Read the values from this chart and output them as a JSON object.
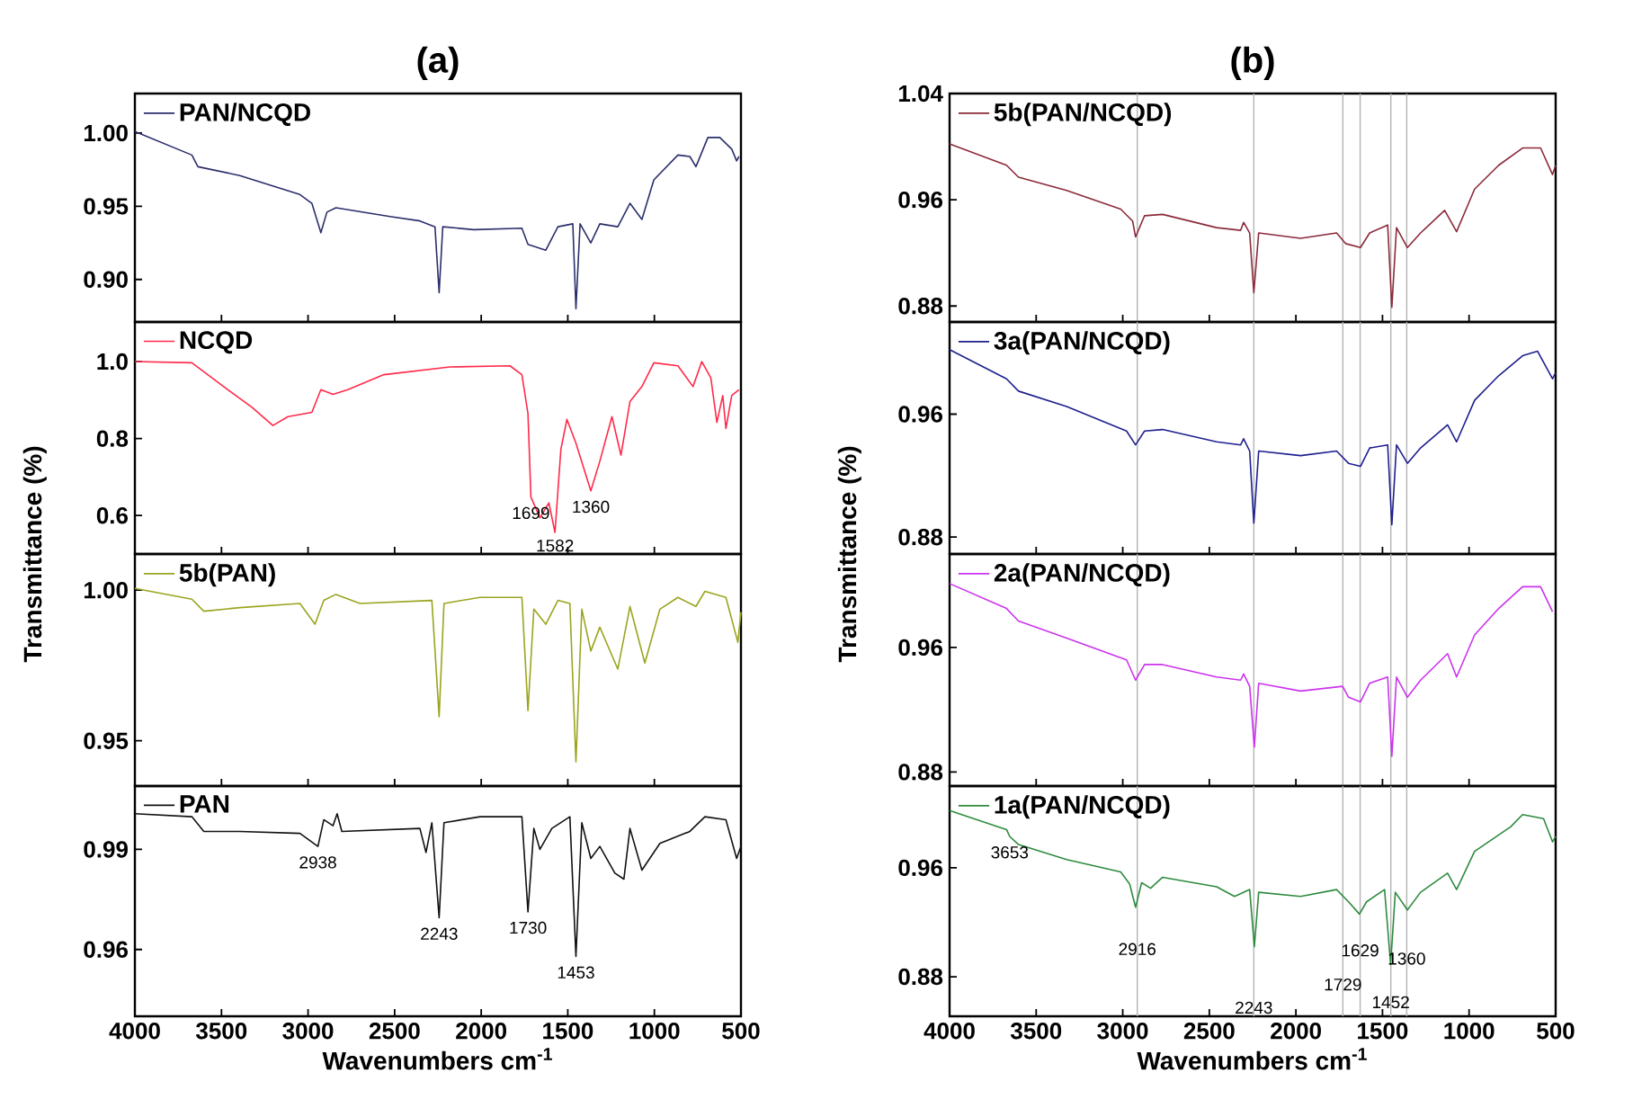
{
  "chart_data": [
    {
      "type": "line",
      "title": "(a)",
      "legend": "top left",
      "xlim": [
        4000,
        500
      ],
      "xticks": [
        4000,
        3500,
        3000,
        2500,
        2000,
        1500,
        1000,
        500
      ],
      "ylim": [
        0.871,
        1.027
      ],
      "yticks": [
        {
          "value": 1.0,
          "label": "1.00"
        },
        {
          "value": 0.95,
          "label": "0.95"
        },
        {
          "value": 0.9,
          "label": "0.90"
        }
      ],
      "tick_labels": "y",
      "series": [
        {
          "name": "PAN/NCQD",
          "color": "#2b2f6b",
          "x": [
            4000,
            3671,
            3636,
            3394,
            3047,
            2978,
            2926,
            2891,
            2839,
            2527,
            2354,
            2267,
            2243,
            2222,
            2042,
            1765,
            1730,
            1627,
            1557,
            1471,
            1453,
            1429,
            1367,
            1315,
            1211,
            1141,
            1072,
            1003,
            864,
            795,
            760,
            691,
            622,
            553,
            525,
            511
          ],
          "values": [
            1.001,
            0.985,
            0.977,
            0.971,
            0.958,
            0.952,
            0.932,
            0.946,
            0.949,
            0.943,
            0.94,
            0.936,
            0.891,
            0.936,
            0.934,
            0.935,
            0.924,
            0.92,
            0.936,
            0.938,
            0.88,
            0.938,
            0.925,
            0.938,
            0.936,
            0.952,
            0.941,
            0.968,
            0.985,
            0.984,
            0.977,
            0.997,
            0.997,
            0.989,
            0.981,
            0.984
          ]
        }
      ]
    },
    {
      "type": "line",
      "ylabel": "Transmittance (%)",
      "legend": "top left",
      "xlim": [
        4000,
        500
      ],
      "xticks": [
        4000,
        3500,
        3000,
        2500,
        2000,
        1500,
        1000,
        500
      ],
      "ylim": [
        0.5,
        1.103
      ],
      "yticks": [
        {
          "value": 1.0,
          "label": "1.0"
        },
        {
          "value": 0.8,
          "label": "0.8"
        },
        {
          "value": 0.6,
          "label": "0.6"
        }
      ],
      "tick_labels": "y",
      "series": [
        {
          "name": "NCQD",
          "color": "#ff2a4a",
          "x": [
            4000,
            3671,
            3463,
            3324,
            3203,
            3116,
            2978,
            2926,
            2856,
            2770,
            2562,
            2181,
            1834,
            1765,
            1730,
            1713,
            1661,
            1609,
            1574,
            1540,
            1505,
            1453,
            1367,
            1315,
            1245,
            1193,
            1141,
            1072,
            1003,
            864,
            777,
            726,
            674,
            639,
            605,
            587,
            553,
            511
          ],
          "values": [
            1.0,
            0.997,
            0.927,
            0.881,
            0.834,
            0.857,
            0.868,
            0.927,
            0.915,
            0.927,
            0.966,
            0.986,
            0.989,
            0.966,
            0.865,
            0.648,
            0.594,
            0.633,
            0.556,
            0.772,
            0.85,
            0.788,
            0.664,
            0.741,
            0.857,
            0.757,
            0.896,
            0.935,
            0.997,
            0.989,
            0.935,
            1.0,
            0.958,
            0.842,
            0.912,
            0.826,
            0.912,
            0.927
          ]
        }
      ],
      "annotations": [
        {
          "text": "1699",
          "x": 1713,
          "y": 0.648
        },
        {
          "text": "1360",
          "x": 1367,
          "y": 0.664
        },
        {
          "text": "1582",
          "x": 1574,
          "y": 0.556
        }
      ]
    },
    {
      "type": "line",
      "legend": "top left",
      "xlim": [
        4000,
        500
      ],
      "xticks": [
        4000,
        3500,
        3000,
        2500,
        2000,
        1500,
        1000,
        500
      ],
      "ylim": [
        0.935,
        1.012
      ],
      "yticks": [
        {
          "value": 1.0,
          "label": "1.00"
        },
        {
          "value": 0.95,
          "label": "0.95"
        }
      ],
      "tick_labels": "y",
      "series": [
        {
          "name": "5b(PAN)",
          "color": "#9aa51e",
          "x": [
            4000,
            3671,
            3602,
            3394,
            3047,
            2960,
            2909,
            2839,
            2700,
            2285,
            2243,
            2215,
            2007,
            1765,
            1730,
            1696,
            1627,
            1557,
            1488,
            1453,
            1419,
            1367,
            1315,
            1211,
            1141,
            1055,
            968,
            864,
            760,
            708,
            587,
            518,
            500
          ],
          "values": [
            1.0006,
            0.997,
            0.993,
            0.9942,
            0.9956,
            0.9887,
            0.9966,
            0.9986,
            0.9956,
            0.9966,
            0.958,
            0.9956,
            0.9976,
            0.9976,
            0.96,
            0.9937,
            0.9887,
            0.9966,
            0.9956,
            0.943,
            0.9937,
            0.9798,
            0.9877,
            0.9738,
            0.9946,
            0.9758,
            0.9937,
            0.9976,
            0.9946,
            0.9996,
            0.9976,
            0.9827,
            0.9927
          ]
        }
      ]
    },
    {
      "type": "line",
      "xlabel": "Wavenumbers cm$^{-1}$",
      "legend": "top left",
      "xlim": [
        4000,
        500
      ],
      "xticks": [
        4000,
        3500,
        3000,
        2500,
        2000,
        1500,
        1000,
        500
      ],
      "ylim": [
        0.94,
        1.009
      ],
      "yticks": [
        {
          "value": 0.99,
          "label": "0.99"
        },
        {
          "value": 0.96,
          "label": "0.96"
        }
      ],
      "series": [
        {
          "name": "PAN",
          "color": "#111111",
          "x": [
            4000,
            3671,
            3602,
            3394,
            3047,
            2943,
            2909,
            2856,
            2832,
            2805,
            2354,
            2319,
            2285,
            2243,
            2215,
            2007,
            1765,
            1730,
            1696,
            1661,
            1592,
            1488,
            1453,
            1419,
            1367,
            1315,
            1228,
            1176,
            1141,
            1072,
            968,
            795,
            708,
            587,
            525,
            500
          ],
          "values": [
            1.0007,
            0.9998,
            0.9954,
            0.9954,
            0.9948,
            0.9909,
            0.9989,
            0.9971,
            1.0007,
            0.9954,
            0.9963,
            0.9891,
            0.998,
            0.9695,
            0.998,
            0.9998,
            0.9998,
            0.9713,
            0.9963,
            0.99,
            0.9963,
            0.9998,
            0.9579,
            0.998,
            0.9873,
            0.9909,
            0.9829,
            0.9811,
            0.9963,
            0.9838,
            0.9918,
            0.9954,
            0.9998,
            0.9989,
            0.9873,
            0.9909
          ]
        }
      ],
      "annotations": [
        {
          "text": "2938",
          "x": 2943,
          "y": 0.9909
        },
        {
          "text": "2243",
          "x": 2243,
          "y": 0.9695
        },
        {
          "text": "1730",
          "x": 1730,
          "y": 0.9713
        },
        {
          "text": "1453",
          "x": 1453,
          "y": 0.9579
        }
      ]
    },
    {
      "type": "line",
      "title": "(b)",
      "legend": "top left",
      "xlim": [
        4000,
        500
      ],
      "xticks": [
        4000,
        3500,
        3000,
        2500,
        2000,
        1500,
        1000,
        500
      ],
      "ylim": [
        0.868,
        1.04
      ],
      "yticks": [
        {
          "value": 1.04,
          "label": "1.04"
        },
        {
          "value": 0.96,
          "label": "0.96"
        },
        {
          "value": 0.88,
          "label": "0.88"
        }
      ],
      "tick_labels": "y",
      "ref_lines": [
        {
          "axis": "x",
          "value": 2916,
          "color": "#b4b4b4"
        },
        {
          "axis": "x",
          "value": 2243,
          "color": "#b4b4b4"
        },
        {
          "axis": "x",
          "value": 1729,
          "color": "#b4b4b4"
        },
        {
          "axis": "x",
          "value": 1629,
          "color": "#b4b4b4"
        },
        {
          "axis": "x",
          "value": 1452,
          "color": "#b4b4b4"
        },
        {
          "axis": "x",
          "value": 1360,
          "color": "#b4b4b4"
        }
      ],
      "series": [
        {
          "name": "5b(PAN/NCQD)",
          "color": "#8b2a3a",
          "x": [
            4000,
            3671,
            3602,
            3324,
            3012,
            2943,
            2926,
            2874,
            2770,
            2458,
            2319,
            2302,
            2267,
            2243,
            2215,
            1973,
            1765,
            1713,
            1627,
            1574,
            1470,
            1446,
            1419,
            1356,
            1280,
            1141,
            1072,
            968,
            829,
            691,
            587,
            518,
            500
          ],
          "values": [
            1.002,
            0.986,
            0.977,
            0.967,
            0.953,
            0.944,
            0.932,
            0.948,
            0.949,
            0.939,
            0.937,
            0.943,
            0.935,
            0.89,
            0.935,
            0.931,
            0.935,
            0.927,
            0.924,
            0.935,
            0.941,
            0.879,
            0.939,
            0.924,
            0.935,
            0.952,
            0.936,
            0.968,
            0.986,
            0.999,
            0.999,
            0.979,
            0.986
          ]
        }
      ]
    },
    {
      "type": "line",
      "ylabel": "Transmittance (%)",
      "legend": "top left",
      "xlim": [
        4000,
        500
      ],
      "xticks": [
        4000,
        3500,
        3000,
        2500,
        2000,
        1500,
        1000,
        500
      ],
      "ylim": [
        0.869,
        1.02
      ],
      "yticks": [
        {
          "value": 0.96,
          "label": "0.96"
        },
        {
          "value": 0.88,
          "label": "0.88"
        }
      ],
      "tick_labels": "y",
      "ref_lines": [
        {
          "axis": "x",
          "value": 2916,
          "color": "#b4b4b4"
        },
        {
          "axis": "x",
          "value": 2243,
          "color": "#b4b4b4"
        },
        {
          "axis": "x",
          "value": 1729,
          "color": "#b4b4b4"
        },
        {
          "axis": "x",
          "value": 1629,
          "color": "#b4b4b4"
        },
        {
          "axis": "x",
          "value": 1452,
          "color": "#b4b4b4"
        },
        {
          "axis": "x",
          "value": 1360,
          "color": "#b4b4b4"
        }
      ],
      "series": [
        {
          "name": "3a(PAN/NCQD)",
          "color": "#1f1f8f",
          "x": [
            4000,
            3671,
            3602,
            3324,
            2978,
            2926,
            2874,
            2770,
            2458,
            2319,
            2302,
            2267,
            2243,
            2215,
            1973,
            1765,
            1696,
            1627,
            1574,
            1470,
            1446,
            1419,
            1356,
            1280,
            1124,
            1072,
            968,
            829,
            691,
            605,
            518,
            500
          ],
          "values": [
            1.002,
            0.983,
            0.975,
            0.965,
            0.949,
            0.94,
            0.949,
            0.95,
            0.942,
            0.94,
            0.944,
            0.936,
            0.889,
            0.936,
            0.933,
            0.936,
            0.928,
            0.926,
            0.938,
            0.94,
            0.888,
            0.94,
            0.928,
            0.938,
            0.953,
            0.942,
            0.969,
            0.985,
            0.998,
            1.001,
            0.983,
            0.987
          ]
        }
      ]
    },
    {
      "type": "line",
      "legend": "top left",
      "xlim": [
        4000,
        500
      ],
      "xticks": [
        4000,
        3500,
        3000,
        2500,
        2000,
        1500,
        1000,
        500
      ],
      "ylim": [
        0.871,
        1.02
      ],
      "yticks": [
        {
          "value": 0.96,
          "label": "0.96"
        },
        {
          "value": 0.88,
          "label": "0.88"
        }
      ],
      "tick_labels": "y",
      "ref_lines": [
        {
          "axis": "x",
          "value": 2916,
          "color": "#b4b4b4"
        },
        {
          "axis": "x",
          "value": 2243,
          "color": "#b4b4b4"
        },
        {
          "axis": "x",
          "value": 1729,
          "color": "#b4b4b4"
        },
        {
          "axis": "x",
          "value": 1629,
          "color": "#b4b4b4"
        },
        {
          "axis": "x",
          "value": 1452,
          "color": "#b4b4b4"
        },
        {
          "axis": "x",
          "value": 1360,
          "color": "#b4b4b4"
        }
      ],
      "series": [
        {
          "name": "2a(PAN/NCQD)",
          "color": "#cc33ee",
          "x": [
            4000,
            3671,
            3602,
            3324,
            2978,
            2926,
            2874,
            2770,
            2458,
            2319,
            2302,
            2267,
            2240,
            2215,
            1973,
            1730,
            1696,
            1627,
            1574,
            1470,
            1446,
            1419,
            1356,
            1280,
            1124,
            1072,
            968,
            829,
            691,
            587,
            518
          ],
          "values": [
            1.001,
            0.985,
            0.977,
            0.966,
            0.952,
            0.939,
            0.949,
            0.949,
            0.941,
            0.939,
            0.943,
            0.935,
            0.896,
            0.937,
            0.932,
            0.935,
            0.928,
            0.925,
            0.937,
            0.941,
            0.89,
            0.941,
            0.928,
            0.939,
            0.956,
            0.941,
            0.968,
            0.985,
            0.999,
            0.999,
            0.983
          ]
        }
      ]
    },
    {
      "type": "line",
      "xlabel": "Wavenumbers cm$^{-1}$",
      "legend": "top left",
      "xlim": [
        4000,
        500
      ],
      "xticks": [
        4000,
        3500,
        3000,
        2500,
        2000,
        1500,
        1000,
        500
      ],
      "ylim": [
        0.851,
        1.02
      ],
      "yticks": [
        {
          "value": 0.96,
          "label": "0.96"
        },
        {
          "value": 0.88,
          "label": "0.88"
        }
      ],
      "ref_lines": [
        {
          "axis": "x",
          "value": 2916,
          "color": "#b4b4b4"
        },
        {
          "axis": "x",
          "value": 2243,
          "color": "#b4b4b4"
        },
        {
          "axis": "x",
          "value": 1729,
          "color": "#b4b4b4"
        },
        {
          "axis": "x",
          "value": 1629,
          "color": "#b4b4b4"
        },
        {
          "axis": "x",
          "value": 1452,
          "color": "#b4b4b4"
        },
        {
          "axis": "x",
          "value": 1360,
          "color": "#b4b4b4"
        }
      ],
      "series": [
        {
          "name": "1a(PAN/NCQD)",
          "color": "#2e8b3e",
          "x": [
            4000,
            3671,
            3653,
            3602,
            3324,
            3012,
            2960,
            2926,
            2891,
            2839,
            2770,
            2458,
            2354,
            2267,
            2240,
            2215,
            1973,
            1765,
            1696,
            1633,
            1592,
            1488,
            1453,
            1426,
            1356,
            1280,
            1124,
            1072,
            968,
            760,
            691,
            570,
            518,
            500
          ],
          "values": [
            1.002,
            0.988,
            0.983,
            0.977,
            0.966,
            0.957,
            0.948,
            0.931,
            0.949,
            0.945,
            0.953,
            0.946,
            0.939,
            0.944,
            0.902,
            0.942,
            0.939,
            0.944,
            0.935,
            0.926,
            0.935,
            0.944,
            0.889,
            0.942,
            0.929,
            0.942,
            0.956,
            0.944,
            0.972,
            0.99,
            0.999,
            0.996,
            0.979,
            0.983
          ]
        }
      ],
      "annotations": [
        {
          "text": "3653",
          "x": 3653,
          "y": 0.983
        },
        {
          "text": "2916",
          "x": 2916,
          "y": 0.912
        },
        {
          "text": "2243",
          "x": 2243,
          "y": 0.869
        },
        {
          "text": "1729",
          "x": 1729,
          "y": 0.886
        },
        {
          "text": "1629",
          "x": 1629,
          "y": 0.911
        },
        {
          "text": "1452",
          "x": 1452,
          "y": 0.873
        },
        {
          "text": "1360",
          "x": 1360,
          "y": 0.905
        }
      ]
    }
  ]
}
